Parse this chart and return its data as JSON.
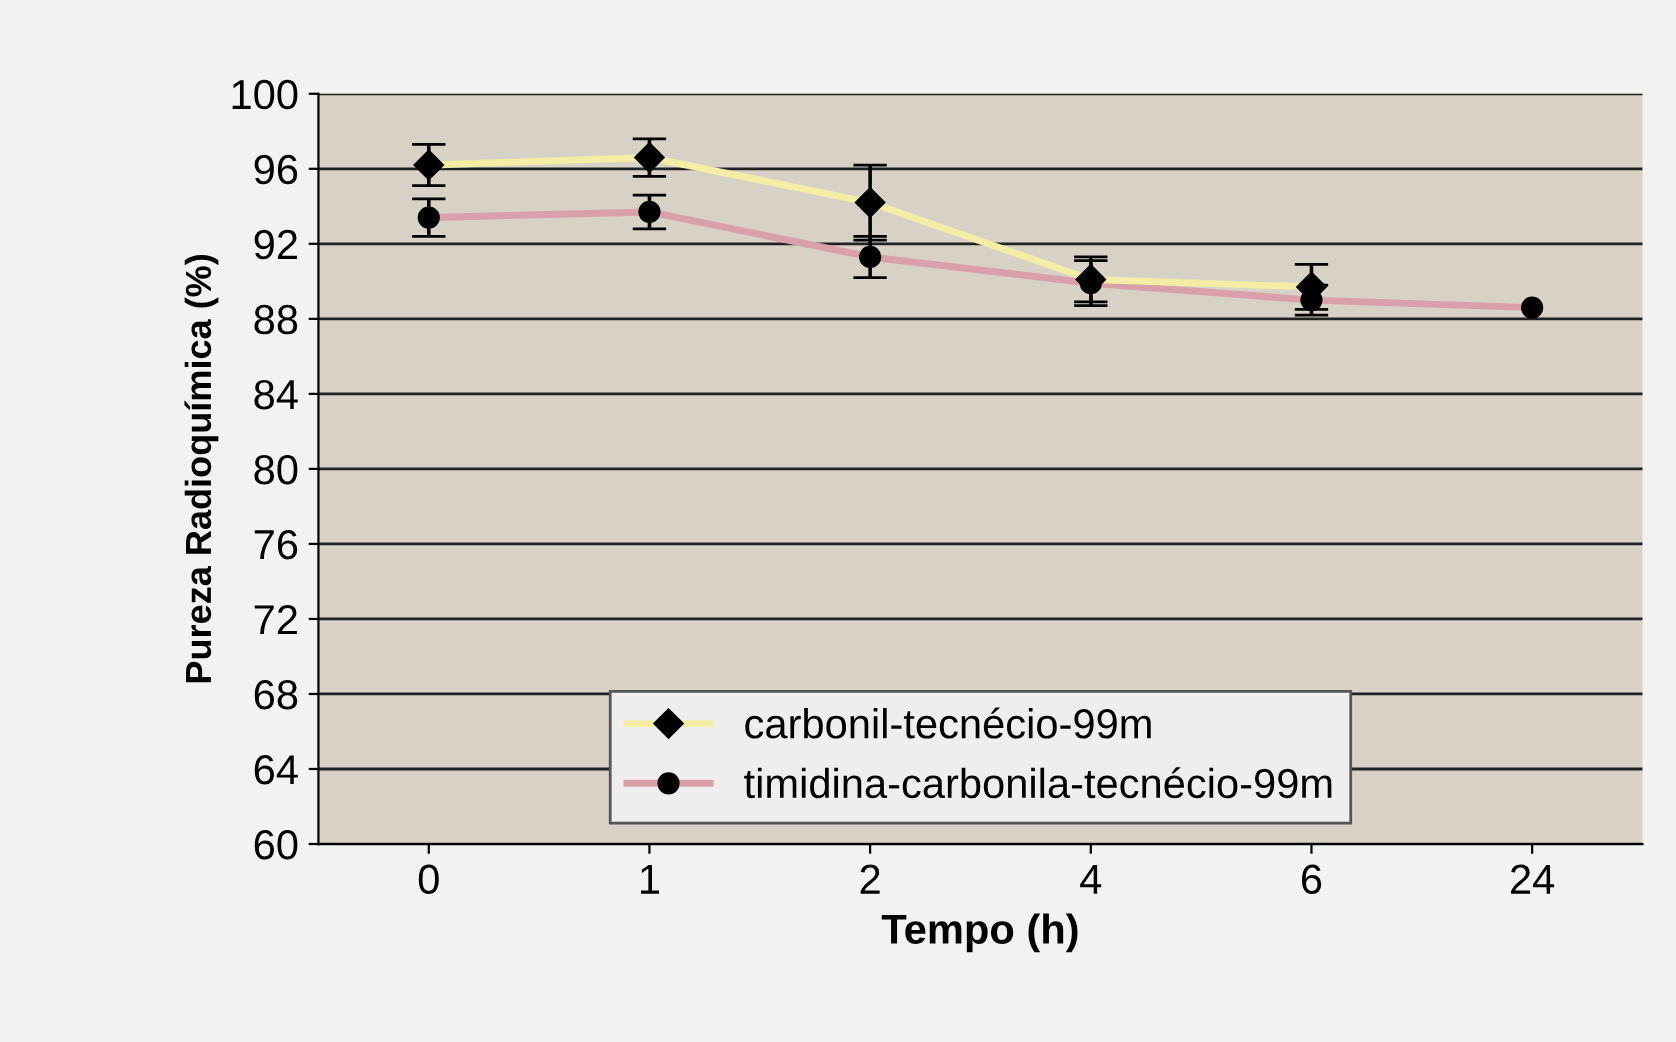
{
  "chart_data": {
    "type": "line",
    "xlabel": "Tempo (h)",
    "ylabel": "Pureza Radioquímica (%)",
    "categories": [
      "0",
      "1",
      "2",
      "4",
      "6",
      "24"
    ],
    "series": [
      {
        "name": "carbonil-tecnécio-99m",
        "color": "#f3eda6",
        "marker": "diamond",
        "values": [
          96.2,
          96.6,
          94.2,
          90.1,
          89.7,
          null
        ],
        "errors": [
          1.1,
          1.0,
          2.0,
          1.2,
          1.2,
          null
        ]
      },
      {
        "name": "timidina-carbonila-tecnécio-99m",
        "color": "#d9a0aa",
        "marker": "circle",
        "values": [
          93.4,
          93.7,
          91.3,
          89.9,
          89.0,
          88.6
        ],
        "errors": [
          1.0,
          0.9,
          1.1,
          1.2,
          0.8,
          null
        ]
      }
    ],
    "ylim": [
      60,
      100
    ],
    "yticks": [
      60,
      64,
      68,
      72,
      76,
      80,
      84,
      88,
      92,
      96,
      100
    ],
    "grid": "y",
    "legend": "bottom"
  }
}
